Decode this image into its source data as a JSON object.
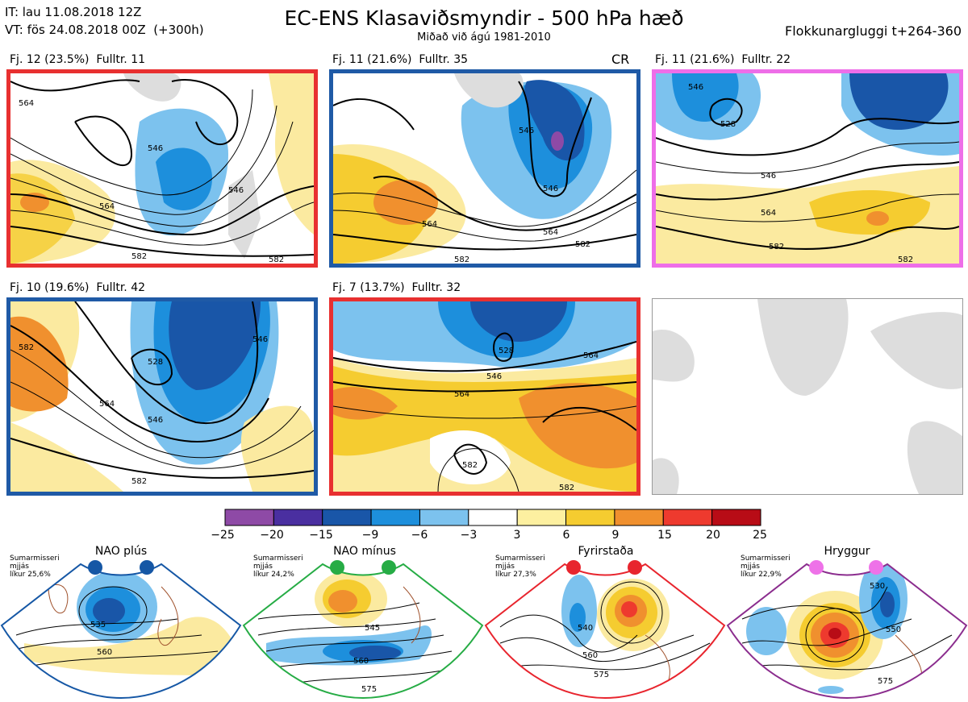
{
  "header": {
    "it_line": "IT: lau 11.08.2018 12Z",
    "vt_line": "VT: fös 24.08.2018 00Z  (+300h)",
    "title": "EC-ENS Klasaviðsmyndir - 500 hPa hæð",
    "subtitle": "Miðað við ágú 1981-2010",
    "window_label": "Flokkunargluggi t+264-360"
  },
  "panels": [
    {
      "label": "Fj. 12 (23.5%)  Fulltr. 11",
      "border": "#e83030",
      "extra": "",
      "contours": [
        "546",
        "546",
        "564",
        "564",
        "582",
        "582"
      ]
    },
    {
      "label": "Fj. 11 (21.6%)  Fulltr. 35",
      "border": "#1f5aa6",
      "extra": "CR",
      "contours": [
        "546",
        "546",
        "564",
        "564",
        "582",
        "582"
      ]
    },
    {
      "label": "Fj. 11 (21.6%)  Fulltr. 22",
      "border": "#ee6ee8",
      "extra": "",
      "contours": [
        "546",
        "546",
        "528",
        "564",
        "582",
        "582"
      ]
    },
    {
      "label": "Fj. 10 (19.6%)  Fulltr. 42",
      "border": "#1f5aa6",
      "extra": "",
      "contours": [
        "528",
        "546",
        "546",
        "564",
        "582",
        "582"
      ]
    },
    {
      "label": "Fj. 7 (13.7%)  Fulltr. 32",
      "border": "#e83030",
      "extra": "",
      "contours": [
        "528",
        "546",
        "564",
        "564",
        "582",
        "582"
      ]
    },
    {
      "label": "",
      "border": "#999999",
      "extra": "",
      "contours": []
    }
  ],
  "colorbar": {
    "ticks": [
      "−25",
      "−20",
      "−15",
      "−9",
      "−6",
      "−3",
      "3",
      "6",
      "9",
      "15",
      "20",
      "25"
    ],
    "colors": [
      "#8e4aa6",
      "#4a2fa0",
      "#1956a8",
      "#1d8fdc",
      "#7cc2ee",
      "#ffffff",
      "#fdf0a0",
      "#f5cc30",
      "#f0902e",
      "#ee3a2e",
      "#b80c16"
    ]
  },
  "regimes": [
    {
      "title": "NAO plús",
      "note_1": "Sumarmisseri",
      "note_2": "mjjás",
      "note_3": "líkur 25,6%",
      "dot_color": "#1557a5",
      "frame": "#1557a5",
      "contours": [
        "535",
        "560"
      ]
    },
    {
      "title": "NAO mínus",
      "note_1": "Sumarmisseri",
      "note_2": "mjjás",
      "note_3": "líkur 24,2%",
      "dot_color": "#26ac45",
      "frame": "#26ac45",
      "contours": [
        "545",
        "560",
        "575"
      ]
    },
    {
      "title": "Fyrirstaða",
      "note_1": "Sumarmisseri",
      "note_2": "mjjás",
      "note_3": "líkur 27,3%",
      "dot_color": "#e8252e",
      "frame": "#e8252e",
      "contours": [
        "540",
        "560",
        "575"
      ]
    },
    {
      "title": "Hryggur",
      "note_1": "Sumarmisseri",
      "note_2": "mjjás",
      "note_3": "líkur 22,9%",
      "dot_color": "#ee72e8",
      "frame": "#8b2d8e",
      "contours": [
        "530",
        "550",
        "575"
      ]
    }
  ]
}
